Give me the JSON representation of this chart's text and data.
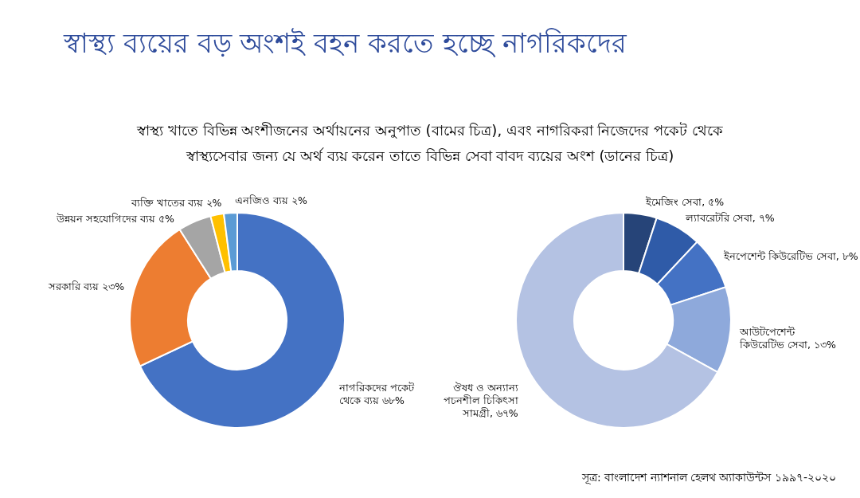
{
  "chart_data": [
    {
      "type": "donut",
      "title": "স্বাস্থ্য ব্যয়ের বড় অংশই বহন করতে হচ্ছে নাগরিকদের",
      "subtitle": "স্বাস্থ্য খাতে বিভিন্ন অংশীজনের অর্থায়নের অনুপাত (বামের চিত্র), এবং নাগরিকরা নিজেদের পকেট থেকে স্বাস্থ্যসেবার জন্য যে অর্থ ব্যয় করেন তাতে বিভিন্ন সেবা বাবদ ব্যয়ের অংশ (ডানের চিত্র)",
      "categories": [
        "নাগরিকদের পকেট থেকে ব্যয়",
        "সরকারি ব্যয়",
        "উন্নয়ন সহযোগিদের ব্যয়",
        "ব্যক্তি খাতের ব্যয়",
        "এনজিও ব্যয়"
      ],
      "values": [
        68,
        23,
        5,
        2,
        2
      ],
      "value_labels": [
        "৬৮%",
        "২৩%",
        "৫%",
        "২%",
        "২%"
      ],
      "colors": [
        "#4472c4",
        "#ed7d31",
        "#a5a5a5",
        "#ffc000",
        "#5b9bd5"
      ]
    },
    {
      "type": "donut",
      "annotations": [
        "সূত্র: বাংলাদেশ ন্যাশনাল হেলথ অ্যাকাউন্টস ১৯৯৭-২০২০"
      ],
      "categories": [
        "ইমেজিং সেবা",
        "ল্যাবরেটরি সেবা",
        "ইনপেশেন্ট কিউরেটিভ সেবা",
        "আউটপেশেন্ট কিউরেটিভ সেবা",
        "ঔষধ ও অন্যান্য পচনশীল চিকিৎসা সামগ্রী"
      ],
      "values": [
        5,
        7,
        8,
        13,
        67
      ],
      "value_labels": [
        "৫%",
        "৭%",
        "৮%",
        "১৩%",
        "৬৭%"
      ],
      "colors": [
        "#264478",
        "#2f5ba8",
        "#4472c4",
        "#8ea9db",
        "#b4c2e3"
      ]
    }
  ]
}
